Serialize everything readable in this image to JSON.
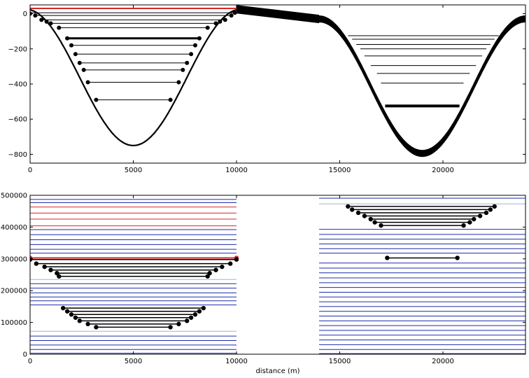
{
  "chart_data": [
    {
      "type": "line",
      "title": "",
      "xlabel": "",
      "ylabel": "",
      "xlim": [
        0,
        24000
      ],
      "ylim": [
        -850,
        50
      ],
      "xticks": [
        0,
        5000,
        10000,
        15000,
        20000
      ],
      "yticks": [
        0,
        -200,
        -400,
        -600,
        -800
      ],
      "xtick_labels": [
        "0",
        "5000",
        "10000",
        "15000",
        "20000"
      ],
      "ytick_labels": [
        "0",
        "−200",
        "−400",
        "−600",
        "−800"
      ],
      "grid": false,
      "colors": {
        "profile": "#000000",
        "water_top": "#d62728",
        "levels": "#000000"
      },
      "trough1": {
        "center": 5000,
        "left_shoulder": -800,
        "right_shoulder": 10000,
        "bottom_depth": -750,
        "top_elevation": 30
      },
      "trough2": {
        "center": 19000,
        "left_shoulder": 14000,
        "right_shoulder": 24000,
        "bottom_depth": -795
      },
      "ridge": {
        "start_x": 10000,
        "end_x": 14000,
        "start_y": 25,
        "end_y": -30,
        "ribbon_thickness": 22
      },
      "water_levels_1": [
        {
          "left": 0,
          "right": 10000,
          "y": 30,
          "color": "#d62728",
          "width": 2
        },
        {
          "left": 80,
          "right": 9920,
          "y": 5,
          "width": 1
        },
        {
          "left": 250,
          "right": 9750,
          "y": -10,
          "width": 1
        },
        {
          "left": 550,
          "right": 9450,
          "y": -35,
          "width": 1
        },
        {
          "left": 1000,
          "right": 9000,
          "y": -55,
          "width": 1
        },
        {
          "left": 1400,
          "right": 8600,
          "y": -80,
          "width": 1
        },
        {
          "left": 1800,
          "right": 8200,
          "y": -140,
          "width": 3
        },
        {
          "left": 2000,
          "right": 8000,
          "y": -180,
          "width": 1
        },
        {
          "left": 2200,
          "right": 7800,
          "y": -230,
          "width": 1
        },
        {
          "left": 2400,
          "right": 7600,
          "y": -280,
          "width": 1
        },
        {
          "left": 2600,
          "right": 7400,
          "y": -320,
          "width": 1
        },
        {
          "left": 2800,
          "right": 7200,
          "y": -390,
          "width": 1
        },
        {
          "left": 3200,
          "right": 6800,
          "y": -490,
          "width": 1
        }
      ],
      "markers_1": [
        [
          0,
          0
        ],
        [
          250,
          -10
        ],
        [
          550,
          -35
        ],
        [
          800,
          -45
        ],
        [
          1000,
          -55
        ],
        [
          1400,
          -80
        ],
        [
          1800,
          -140
        ],
        [
          2000,
          -180
        ],
        [
          2200,
          -230
        ],
        [
          2400,
          -280
        ],
        [
          2600,
          -320
        ],
        [
          2800,
          -390
        ],
        [
          3200,
          -490
        ],
        [
          6800,
          -490
        ],
        [
          7200,
          -390
        ],
        [
          7400,
          -320
        ],
        [
          7600,
          -280
        ],
        [
          7800,
          -230
        ],
        [
          8000,
          -180
        ],
        [
          8200,
          -140
        ],
        [
          8600,
          -80
        ],
        [
          9000,
          -55
        ],
        [
          9200,
          -45
        ],
        [
          9450,
          -35
        ],
        [
          9750,
          -10
        ],
        [
          9920,
          5
        ]
      ],
      "water_levels_2": [
        {
          "left": 15400,
          "right": 22700,
          "y": -125,
          "width": 1
        },
        {
          "left": 15600,
          "right": 22500,
          "y": -145,
          "width": 1
        },
        {
          "left": 15800,
          "right": 22300,
          "y": -175,
          "width": 1
        },
        {
          "left": 16000,
          "right": 22100,
          "y": -200,
          "width": 1
        },
        {
          "left": 16200,
          "right": 21900,
          "y": -240,
          "width": 1
        },
        {
          "left": 16500,
          "right": 21600,
          "y": -295,
          "width": 1
        },
        {
          "left": 16800,
          "right": 21300,
          "y": -340,
          "width": 1
        },
        {
          "left": 17000,
          "right": 21000,
          "y": -395,
          "width": 1
        },
        {
          "left": 17200,
          "right": 20800,
          "y": -525,
          "width": 4
        }
      ],
      "markers_2": []
    },
    {
      "type": "line",
      "title": "",
      "xlabel": "distance (m)",
      "ylabel": "",
      "xlim": [
        0,
        24000
      ],
      "ylim": [
        0,
        500000
      ],
      "xticks": [
        0,
        5000,
        10000,
        15000,
        20000
      ],
      "yticks": [
        0,
        100000,
        200000,
        300000,
        400000,
        500000
      ],
      "xtick_labels": [
        "0",
        "5000",
        "10000",
        "15000",
        "20000"
      ],
      "ytick_labels": [
        "0",
        "100000",
        "200000",
        "300000",
        "400000",
        "500000"
      ],
      "grid": false,
      "colors": {
        "blue": "#1f2ea8",
        "light_blue": "#9fb3d9",
        "red": "#d62728",
        "markers": "#000000"
      },
      "left_region": {
        "x_from": 0,
        "x_to": 10000
      },
      "right_region": {
        "x_from": 14000,
        "x_to": 24000
      },
      "left_bands": [
        {
          "y": 487000,
          "color": "#1f2ea8"
        },
        {
          "y": 477000,
          "color": "#1f2ea8"
        },
        {
          "y": 463000,
          "color": "#d62728"
        },
        {
          "y": 444000,
          "color": "#d62728"
        },
        {
          "y": 425000,
          "color": "#d62728"
        },
        {
          "y": 404000,
          "color": "#d62728"
        },
        {
          "y": 392000,
          "color": "#1f2ea8"
        },
        {
          "y": 376000,
          "color": "#1f2ea8"
        },
        {
          "y": 360000,
          "color": "#1f2ea8"
        },
        {
          "y": 345000,
          "color": "#1f2ea8"
        },
        {
          "y": 330000,
          "color": "#1f2ea8"
        },
        {
          "y": 318000,
          "color": "#1f2ea8"
        },
        {
          "y": 303000,
          "color": "#d62728"
        },
        {
          "y": 235000,
          "color": "#9fb3d9"
        },
        {
          "y": 222000,
          "color": "#1f2ea8"
        },
        {
          "y": 208000,
          "color": "#1f2ea8"
        },
        {
          "y": 193000,
          "color": "#1f2ea8"
        },
        {
          "y": 180000,
          "color": "#1f2ea8"
        },
        {
          "y": 168000,
          "color": "#1f2ea8"
        },
        {
          "y": 155000,
          "color": "#1f2ea8"
        },
        {
          "y": 72000,
          "color": "#9fb3d9"
        },
        {
          "y": 57000,
          "color": "#1f2ea8"
        },
        {
          "y": 43000,
          "color": "#1f2ea8"
        },
        {
          "y": 29000,
          "color": "#1f2ea8"
        },
        {
          "y": 15000,
          "color": "#1f2ea8"
        },
        {
          "y": 3000,
          "color": "#1f2ea8"
        }
      ],
      "right_bands": [
        {
          "y": 491000,
          "color": "#1f2ea8"
        },
        {
          "y": 473000,
          "color": "#9fb3d9"
        },
        {
          "y": 393000,
          "color": "#1f2ea8"
        },
        {
          "y": 377000,
          "color": "#1f2ea8"
        },
        {
          "y": 362000,
          "color": "#1f2ea8"
        },
        {
          "y": 347000,
          "color": "#1f2ea8"
        },
        {
          "y": 332000,
          "color": "#1f2ea8"
        },
        {
          "y": 318000,
          "color": "#1f2ea8"
        },
        {
          "y": 287000,
          "color": "#1f2ea8"
        },
        {
          "y": 271000,
          "color": "#1f2ea8"
        },
        {
          "y": 256000,
          "color": "#1f2ea8"
        },
        {
          "y": 240000,
          "color": "#1f2ea8"
        },
        {
          "y": 225000,
          "color": "#1f2ea8"
        },
        {
          "y": 210000,
          "color": "#1f2ea8"
        },
        {
          "y": 195000,
          "color": "#1f2ea8"
        },
        {
          "y": 180000,
          "color": "#1f2ea8"
        },
        {
          "y": 165000,
          "color": "#1f2ea8"
        },
        {
          "y": 150000,
          "color": "#1f2ea8"
        },
        {
          "y": 135000,
          "color": "#1f2ea8"
        },
        {
          "y": 120000,
          "color": "#1f2ea8"
        },
        {
          "y": 105000,
          "color": "#1f2ea8"
        },
        {
          "y": 90000,
          "color": "#1f2ea8"
        },
        {
          "y": 75000,
          "color": "#1f2ea8"
        },
        {
          "y": 60000,
          "color": "#1f2ea8"
        },
        {
          "y": 45000,
          "color": "#1f2ea8"
        },
        {
          "y": 30000,
          "color": "#1f2ea8"
        },
        {
          "y": 15000,
          "color": "#1f2ea8"
        },
        {
          "y": 2000,
          "color": "#1f2ea8"
        }
      ],
      "red_lines": [
        {
          "left": 0,
          "right": 10000,
          "y": 303000
        }
      ],
      "red_endpoints": [
        [
          0,
          303000
        ],
        [
          10000,
          303000
        ]
      ],
      "level_lines": [
        {
          "left": 0,
          "right": 10000,
          "y": 298000
        },
        {
          "left": 300,
          "right": 9700,
          "y": 285000
        },
        {
          "left": 700,
          "right": 9300,
          "y": 275000
        },
        {
          "left": 1000,
          "right": 9000,
          "y": 265000
        },
        {
          "left": 1300,
          "right": 8700,
          "y": 255000
        },
        {
          "left": 1400,
          "right": 8600,
          "y": 245000
        },
        {
          "left": 1600,
          "right": 8400,
          "y": 145000
        },
        {
          "left": 1800,
          "right": 8200,
          "y": 135000
        },
        {
          "left": 2000,
          "right": 8000,
          "y": 125000
        },
        {
          "left": 2200,
          "right": 7800,
          "y": 115000
        },
        {
          "left": 2400,
          "right": 7600,
          "y": 105000
        },
        {
          "left": 2800,
          "right": 7200,
          "y": 95000
        },
        {
          "left": 3200,
          "right": 6800,
          "y": 85000
        },
        {
          "left": 15400,
          "right": 22500,
          "y": 465000
        },
        {
          "left": 15600,
          "right": 22300,
          "y": 455000
        },
        {
          "left": 15900,
          "right": 22100,
          "y": 445000
        },
        {
          "left": 16200,
          "right": 21800,
          "y": 435000
        },
        {
          "left": 16500,
          "right": 21500,
          "y": 425000
        },
        {
          "left": 16700,
          "right": 21300,
          "y": 415000
        },
        {
          "left": 17000,
          "right": 21000,
          "y": 405000
        },
        {
          "left": 17300,
          "right": 20700,
          "y": 303000
        }
      ]
    }
  ]
}
